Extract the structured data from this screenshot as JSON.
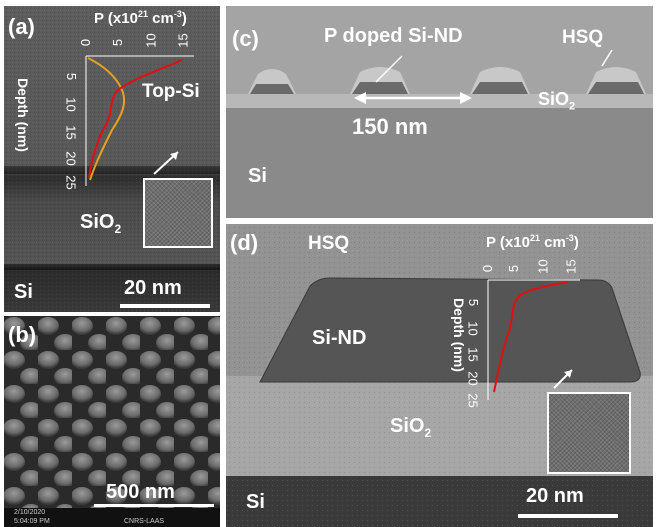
{
  "panel_a": {
    "label": "(a)",
    "plot_title_prefix": "P (x10",
    "plot_title_exp": "21",
    "plot_title_unit": " cm",
    "plot_title_unit_exp": "-3",
    "plot_title_suffix": ")",
    "x_ticks": [
      "0",
      "5",
      "10",
      "15"
    ],
    "y_label": "Depth (nm)",
    "y_ticks": [
      "5",
      "10",
      "15",
      "20",
      "25"
    ],
    "layer_top": "Top-Si",
    "layer_oxide_base": "SiO",
    "layer_oxide_sub": "2",
    "layer_substrate": "Si",
    "scale_label": "20 nm"
  },
  "panel_b": {
    "label": "(b)",
    "scale_label": "500 nm",
    "footer_date": "2/10/2020",
    "footer_time": "5:04:09 PM",
    "footer_lab": "CNRS-LAAS"
  },
  "panel_c": {
    "label": "(c)",
    "annotation_nd": "P doped Si-ND",
    "annotation_hsq": "HSQ",
    "layer_oxide_base": "SiO",
    "layer_oxide_sub": "2",
    "pitch_label": "150 nm",
    "layer_substrate": "Si"
  },
  "panel_d": {
    "label": "(d)",
    "annotation_hsq": "HSQ",
    "plot_title_prefix": "P (x10",
    "plot_title_exp": "21",
    "plot_title_unit": " cm",
    "plot_title_unit_exp": "-3",
    "plot_title_suffix": ")",
    "x_ticks": [
      "0",
      "5",
      "10",
      "15"
    ],
    "y_label": "Depth (nm)",
    "y_ticks": [
      "5",
      "10",
      "15",
      "20",
      "25"
    ],
    "nd_label": "Si-ND",
    "layer_oxide_base": "SiO",
    "layer_oxide_sub": "2",
    "layer_substrate": "Si",
    "scale_label": "20 nm"
  },
  "colors": {
    "profile_red": "#e01010",
    "profile_orange": "#e8a020",
    "text": "#ffffff"
  }
}
